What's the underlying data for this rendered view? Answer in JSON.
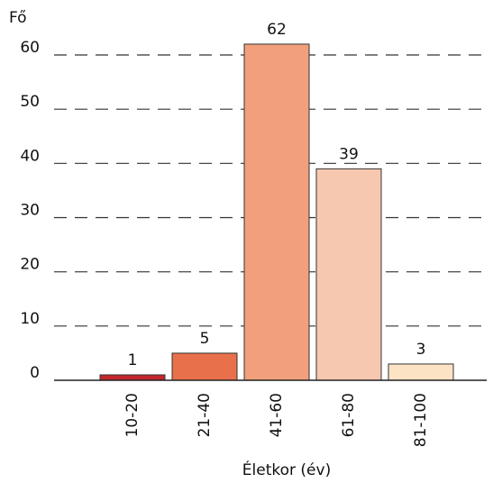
{
  "chart_data": {
    "type": "bar",
    "y_axis_label": "Fő",
    "x_axis_label": "Életkor (év)",
    "categories": [
      "10-20",
      "21-40",
      "41-60",
      "61-80",
      "81-100"
    ],
    "values": [
      1,
      5,
      62,
      39,
      3
    ],
    "colors": [
      "#c0282d",
      "#e8704a",
      "#f2a07c",
      "#f7c8b0",
      "#fbe3c4"
    ],
    "ylim": [
      0,
      60
    ],
    "yticks": [
      0,
      10,
      20,
      30,
      40,
      50,
      60
    ],
    "grid": true
  }
}
